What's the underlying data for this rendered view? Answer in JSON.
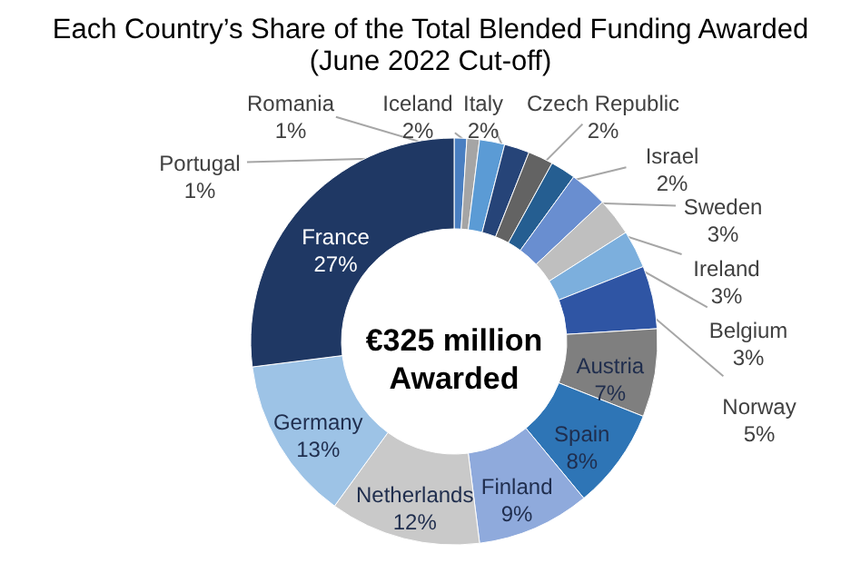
{
  "chart_data": {
    "type": "donut",
    "title": "Each Country’s Share of the Total Blended Funding Awarded",
    "subtitle": "(June 2022 Cut-off)",
    "categories": [
      "Portugal",
      "Romania",
      "Iceland",
      "Italy",
      "Czech Republic",
      "Israel",
      "Sweden",
      "Ireland",
      "Belgium",
      "Norway",
      "Austria",
      "Spain",
      "Finland",
      "Netherlands",
      "Germany",
      "France"
    ],
    "values": [
      1,
      1,
      2,
      2,
      2,
      2,
      3,
      3,
      3,
      5,
      7,
      8,
      9,
      12,
      13,
      27
    ],
    "value_labels": [
      "1%",
      "1%",
      "2%",
      "2%",
      "2%",
      "2%",
      "3%",
      "3%",
      "3%",
      "5%",
      "7%",
      "8%",
      "9%",
      "12%",
      "13%",
      "27%"
    ],
    "colors": [
      "#4a7fc1",
      "#a5a5a5",
      "#5b9bd5",
      "#264478",
      "#636363",
      "#255e91",
      "#698ed0",
      "#bfbfbf",
      "#7cafdd",
      "#2f55a4",
      "#7f7f7f",
      "#2e75b6",
      "#8faadc",
      "#c9c9c9",
      "#9dc3e6",
      "#1f3864"
    ],
    "annotations": [
      "€325 million\nAwarded"
    ]
  }
}
